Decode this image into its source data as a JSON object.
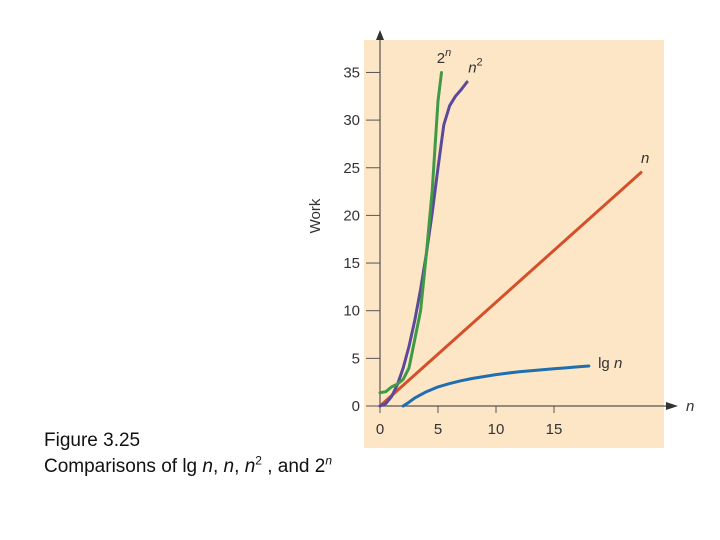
{
  "caption": {
    "line1": "Figure 3.25",
    "prefix": "Comparisons of lg ",
    "n1": "n",
    "sep1": ", ",
    "n2": "n",
    "sep2": ", ",
    "n3": "n",
    "exp2": "2",
    "sep3": " , and 2",
    "n4": "n"
  },
  "colors": {
    "panel_bg": "#fde6c6",
    "axis": "#555555",
    "arrow": "#333333",
    "lg": "#1f6fb0",
    "linear": "#d4502a",
    "square": "#5b4a9a",
    "exponential": "#3f9a45"
  },
  "chart_data": {
    "type": "line",
    "xlabel": "n",
    "ylabel": "Work",
    "xlim": [
      0,
      25
    ],
    "ylim": [
      0,
      38
    ],
    "x_ticks": [
      0,
      5,
      10,
      15
    ],
    "y_ticks": [
      0,
      5,
      10,
      15,
      20,
      25,
      30,
      35
    ],
    "grid": false,
    "series": [
      {
        "name": "lg n",
        "color": "#1f6fb0",
        "x": [
          2,
          2.5,
          3,
          4,
          5,
          6,
          7,
          8,
          9,
          10,
          11,
          12,
          13,
          14,
          15,
          16,
          17,
          18
        ],
        "y": [
          0.0,
          0.4,
          0.85,
          1.5,
          2.0,
          2.35,
          2.65,
          2.9,
          3.1,
          3.3,
          3.45,
          3.6,
          3.7,
          3.8,
          3.9,
          4.0,
          4.1,
          4.2
        ]
      },
      {
        "name": "n",
        "color": "#d4502a",
        "x": [
          0,
          22.5
        ],
        "y": [
          0,
          24.5
        ]
      },
      {
        "name": "n2",
        "color": "#5b4a9a",
        "x": [
          0,
          0.5,
          1,
          1.5,
          2,
          2.5,
          3,
          3.5,
          4,
          4.5,
          5,
          5.5,
          6,
          6.5,
          7,
          7.5
        ],
        "y": [
          0,
          0.25,
          1,
          2.25,
          4,
          6.25,
          9,
          12.25,
          16,
          20.25,
          25,
          29.5,
          31.5,
          32.5,
          33.2,
          34
        ]
      },
      {
        "name": "2n",
        "color": "#3f9a45",
        "x": [
          0,
          0.5,
          1,
          1.5,
          2,
          2.5,
          3,
          3.5,
          4,
          4.5,
          5,
          5.3
        ],
        "y": [
          1.4,
          1.5,
          2.0,
          2.3,
          2.8,
          4.0,
          7.0,
          10.0,
          16.0,
          22.6,
          32.0,
          35.0
        ]
      }
    ],
    "labels": [
      {
        "text": "2",
        "sup": "n",
        "series": 3,
        "at": [
          4.9,
          36.0
        ]
      },
      {
        "text": "n",
        "sup": "2",
        "series": 2,
        "at": [
          7.6,
          35.0
        ]
      },
      {
        "text": "n",
        "sup": "",
        "series": 1,
        "at": [
          22.5,
          25.5
        ]
      },
      {
        "text": "lg ",
        "sup": "",
        "italic": "n",
        "series": 0,
        "at": [
          18.8,
          4.0
        ]
      }
    ]
  }
}
